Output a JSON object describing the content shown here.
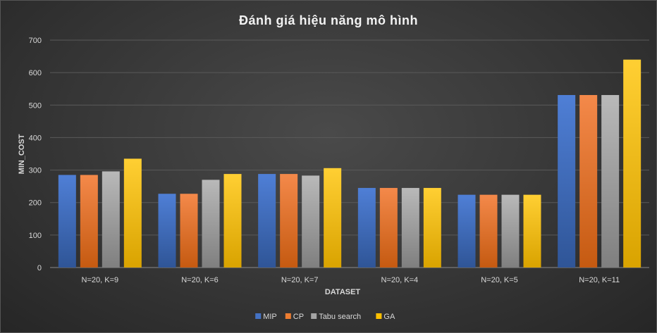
{
  "chart_data": {
    "type": "bar",
    "title": "Đánh giá hiệu năng mô hình",
    "xlabel": "DATASET",
    "ylabel": "MIN_COST",
    "ylim": [
      0,
      700
    ],
    "yticks": [
      0,
      100,
      200,
      300,
      400,
      500,
      600,
      700
    ],
    "categories": [
      "N=20, K=9",
      "N=20, K=6",
      "N=20, K=7",
      "N=20, K=4",
      "N=20, K=5",
      "N=20, K=11"
    ],
    "series": [
      {
        "name": "MIP",
        "color": "#4472c4",
        "values": [
          285,
          227,
          288,
          245,
          224,
          531
        ]
      },
      {
        "name": "CP",
        "color": "#ed7d31",
        "values": [
          285,
          227,
          288,
          245,
          224,
          531
        ]
      },
      {
        "name": "Tabu search",
        "color": "#a5a5a5",
        "values": [
          296,
          270,
          283,
          245,
          224,
          531
        ]
      },
      {
        "name": "GA",
        "color": "#ffc000",
        "values": [
          335,
          288,
          306,
          245,
          224,
          640
        ]
      }
    ],
    "grid": true,
    "legend_position": "bottom"
  }
}
